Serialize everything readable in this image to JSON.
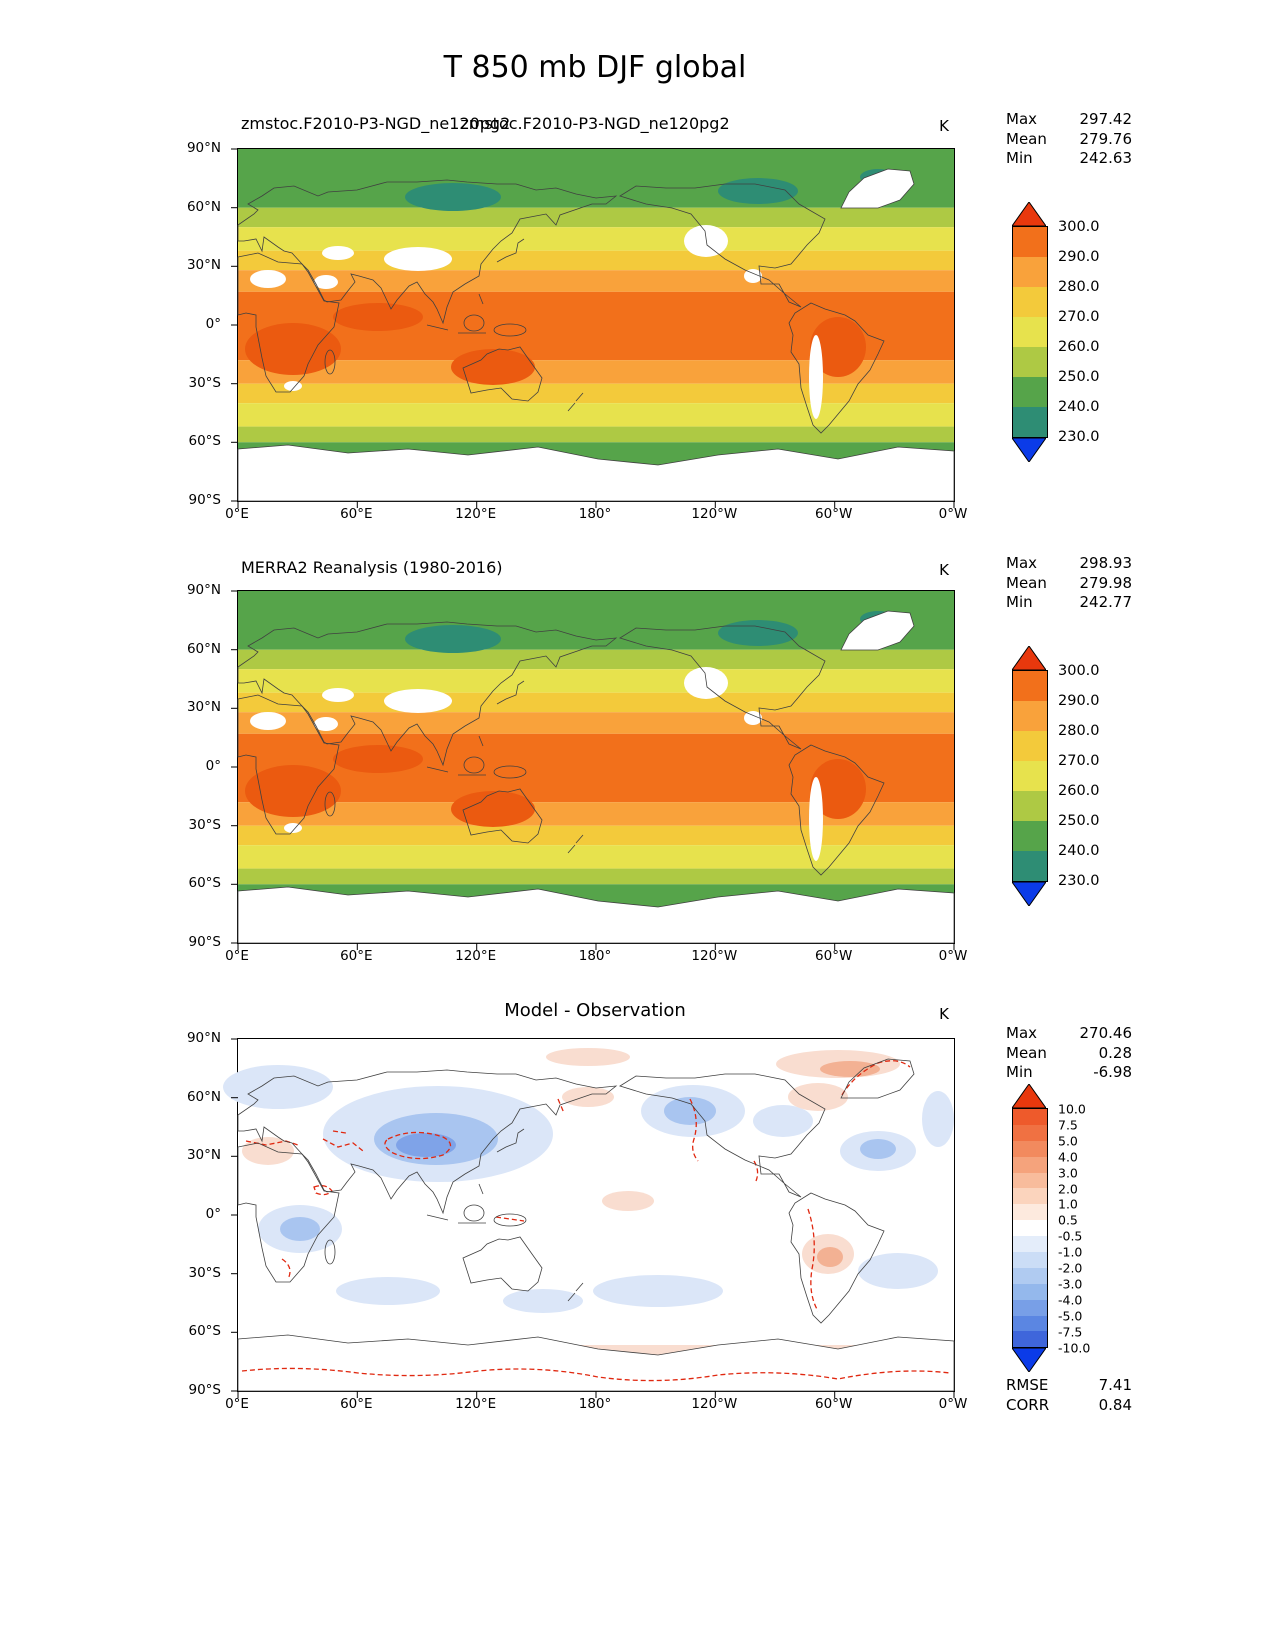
{
  "title": "T 850 mb DJF global",
  "axes": {
    "x_ticks": [
      "0°E",
      "60°E",
      "120°E",
      "180°",
      "120°W",
      "60°W",
      "0°W"
    ],
    "y_ticks": [
      "90°N",
      "60°N",
      "30°N",
      "0°",
      "30°S",
      "60°S",
      "90°S"
    ]
  },
  "stat_labels": {
    "max": "Max",
    "mean": "Mean",
    "min": "Min",
    "rmse": "RMSE",
    "corr": "CORR"
  },
  "panels": [
    {
      "key": "model",
      "title_left": "zmstoc.F2010-P3-NGD_ne120pg2",
      "title_center": "zmstoc.F2010-P3-NGD_ne120pg2",
      "unit": "K",
      "stats": {
        "max": "297.42",
        "mean": "279.76",
        "min": "242.63"
      }
    },
    {
      "key": "merra2",
      "title": "MERRA2 Reanalysis (1980-2016)",
      "unit": "K",
      "stats": {
        "max": "298.93",
        "mean": "279.98",
        "min": "242.77"
      }
    },
    {
      "key": "diff",
      "title": "Model - Observation",
      "unit": "K",
      "stats": {
        "max": "270.46",
        "mean": "0.28",
        "min": "-6.98"
      },
      "rmse": "7.41",
      "corr": "0.84"
    }
  ],
  "colorbar_abs": {
    "labels": [
      "300.0",
      "290.0",
      "280.0",
      "270.0",
      "260.0",
      "250.0",
      "240.0",
      "230.0"
    ],
    "colors": [
      "#f2701b",
      "#f9a23b",
      "#f3ca3b",
      "#e7e24d",
      "#aec944",
      "#56a44a",
      "#2e8d74"
    ],
    "extend_top": "#e8380d",
    "extend_bottom": "#0b3be8"
  },
  "colorbar_diff": {
    "labels": [
      "10.0",
      "7.5",
      "5.0",
      "4.0",
      "3.0",
      "2.0",
      "1.0",
      "0.5",
      "-0.5",
      "-1.0",
      "-2.0",
      "-3.0",
      "-4.0",
      "-5.0",
      "-7.5",
      "-10.0"
    ],
    "colors": [
      "#ee5a2b",
      "#f07142",
      "#f28a5e",
      "#f5a37c",
      "#f8bc9c",
      "#fbd4bd",
      "#fdeade",
      "#ffffff",
      "#e4edfa",
      "#cbddf6",
      "#b0cbf1",
      "#94b8ec",
      "#789fe7",
      "#5b86e2",
      "#3f66db"
    ],
    "extend_top": "#e8380d",
    "extend_bottom": "#0b3be8"
  },
  "map_palette": {
    "hot": "#eb5a10",
    "masked": "#ffffff",
    "land_outline": "#404040"
  },
  "diff_palette": {
    "blue_light": "#dbe6f8",
    "blue_mid": "#a9c5f0",
    "blue_deep": "#7fa3e8",
    "red_light": "#f9ddd0",
    "red_mid": "#f3b193",
    "contour": "#e02810"
  },
  "chart_data": [
    {
      "type": "heatmap",
      "subtype": "filled-contour-global-map",
      "title": "zmstoc.F2010-P3-NGD_ne120pg2",
      "variable": "T 850 mb",
      "season": "DJF",
      "region": "global",
      "units": "K",
      "x_range_deg": [
        0,
        360
      ],
      "lat_range_deg": [
        -90,
        90
      ],
      "contour_levels": [
        230,
        240,
        250,
        260,
        270,
        280,
        290,
        300
      ],
      "colorbar_extend": "both",
      "stats": {
        "max": 297.42,
        "mean": 279.76,
        "min": 242.63
      }
    },
    {
      "type": "heatmap",
      "subtype": "filled-contour-global-map",
      "title": "MERRA2 Reanalysis (1980-2016)",
      "variable": "T 850 mb",
      "season": "DJF",
      "region": "global",
      "units": "K",
      "x_range_deg": [
        0,
        360
      ],
      "lat_range_deg": [
        -90,
        90
      ],
      "contour_levels": [
        230,
        240,
        250,
        260,
        270,
        280,
        290,
        300
      ],
      "colorbar_extend": "both",
      "stats": {
        "max": 298.93,
        "mean": 279.98,
        "min": 242.77
      }
    },
    {
      "type": "heatmap",
      "subtype": "filled-contour-difference-map",
      "title": "Model - Observation",
      "variable": "T 850 mb difference",
      "season": "DJF",
      "region": "global",
      "units": "K",
      "x_range_deg": [
        0,
        360
      ],
      "lat_range_deg": [
        -90,
        90
      ],
      "contour_levels": [
        -10,
        -7.5,
        -5,
        -4,
        -3,
        -2,
        -1,
        -0.5,
        0.5,
        1,
        2,
        3,
        4,
        5,
        7.5,
        10
      ],
      "colorbar_extend": "both",
      "stats": {
        "max": 270.46,
        "mean": 0.28,
        "min": -6.98
      },
      "rmse": 7.41,
      "corr": 0.84
    }
  ]
}
